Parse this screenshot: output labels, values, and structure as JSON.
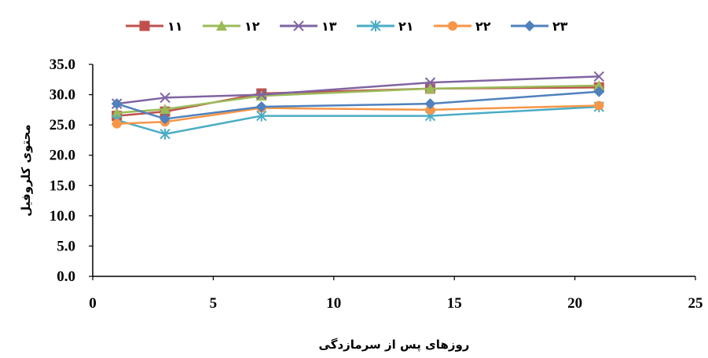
{
  "chart_data": {
    "type": "line",
    "title": "",
    "xlabel": "روزهای پس از سرمازدگی",
    "ylabel": "محتوی کلروفیل",
    "xlim": [
      0,
      25
    ],
    "ylim": [
      0,
      35
    ],
    "x_ticks": [
      "0",
      "5",
      "10",
      "15",
      "20",
      "25"
    ],
    "y_ticks": [
      "0.0",
      "5.0",
      "10.0",
      "15.0",
      "20.0",
      "25.0",
      "30.0",
      "35.0"
    ],
    "grid": false,
    "legend_position": "top",
    "x": [
      1,
      3,
      7,
      14,
      21
    ],
    "series": [
      {
        "name": "۱۱",
        "color": "#C0504D",
        "marker": "square",
        "values": [
          26.5,
          27.2,
          30.2,
          31.0,
          31.2
        ]
      },
      {
        "name": "۱۲",
        "color": "#9BBB59",
        "marker": "triangle",
        "values": [
          27.0,
          27.6,
          29.8,
          31.0,
          31.5
        ]
      },
      {
        "name": "۱۳",
        "color": "#8064A2",
        "marker": "x",
        "values": [
          28.5,
          29.5,
          30.0,
          32.0,
          33.0
        ]
      },
      {
        "name": "۲۱",
        "color": "#4BACC6",
        "marker": "star",
        "values": [
          25.8,
          23.5,
          26.5,
          26.5,
          28.0
        ]
      },
      {
        "name": "۲۲",
        "color": "#F79646",
        "marker": "circle",
        "values": [
          25.2,
          25.5,
          27.8,
          27.5,
          28.2
        ]
      },
      {
        "name": "۲۳",
        "color": "#4F81BD",
        "marker": "diamond",
        "values": [
          28.5,
          26.0,
          28.0,
          28.5,
          30.5
        ]
      }
    ]
  }
}
